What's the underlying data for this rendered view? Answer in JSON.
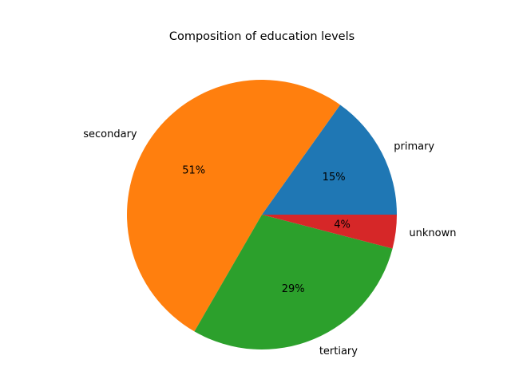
{
  "chart_data": {
    "type": "pie",
    "title": "Composition of education levels",
    "categories": [
      "primary",
      "secondary",
      "tertiary",
      "unknown"
    ],
    "values": [
      15,
      51,
      29,
      4
    ],
    "value_labels": [
      "15%",
      "51%",
      "29%",
      "4%"
    ],
    "colors": [
      "#1f77b4",
      "#ff7f0e",
      "#2ca02c",
      "#d62728"
    ],
    "start_angle_deg": 0,
    "direction": "counterclockwise",
    "legend": "none"
  }
}
